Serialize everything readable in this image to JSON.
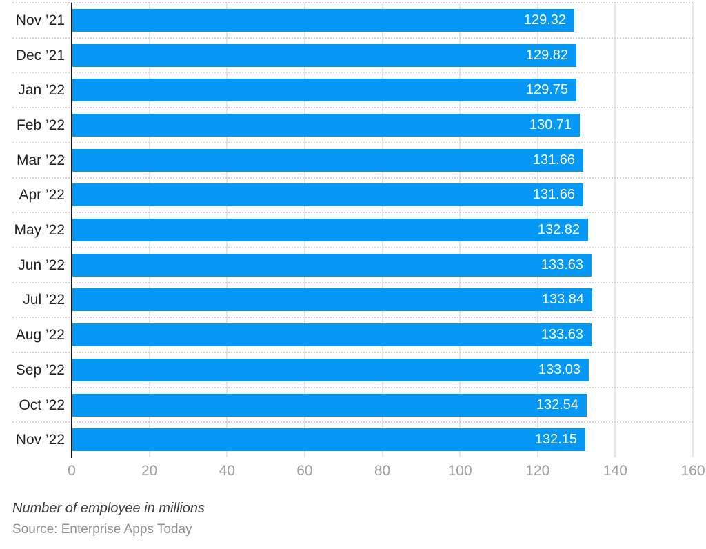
{
  "chart_data": {
    "type": "bar",
    "orientation": "horizontal",
    "categories": [
      "Nov ’21",
      "Dec ’21",
      "Jan ’22",
      "Feb ’22",
      "Mar ’22",
      "Apr ’22",
      "May ’22",
      "Jun ’22",
      "Jul ’22",
      "Aug ’22",
      "Sep ’22",
      "Oct ’22",
      "Nov ’22"
    ],
    "values": [
      129.32,
      129.82,
      129.75,
      130.71,
      131.66,
      131.66,
      132.82,
      133.63,
      133.84,
      133.63,
      133.03,
      132.54,
      132.15
    ],
    "value_labels": [
      "129.32",
      "129.82",
      "129.75",
      "130.71",
      "131.66",
      "131.66",
      "132.82",
      "133.63",
      "133.84",
      "133.63",
      "133.03",
      "132.54",
      "132.15"
    ],
    "x_ticks": [
      0,
      20,
      40,
      60,
      80,
      100,
      120,
      140,
      160
    ],
    "xlim": [
      0,
      160
    ],
    "title": "",
    "xlabel": "",
    "ylabel": "",
    "caption": "Number of employee in millions",
    "source": "Source: Enterprise Apps Today",
    "legend": "none",
    "grid": "vertical-solid, horizontal-dotted-row-separators",
    "colors": {
      "bar": "#0598f5",
      "bar_value_text": "#ffffff",
      "category_text": "#1f1f1f",
      "tick_text": "#9d9da1",
      "axis_line": "#161616",
      "vertical_grid": "#e7e7e9",
      "dotted_separator": "#d2d2d2",
      "background": "#ffffff"
    }
  }
}
